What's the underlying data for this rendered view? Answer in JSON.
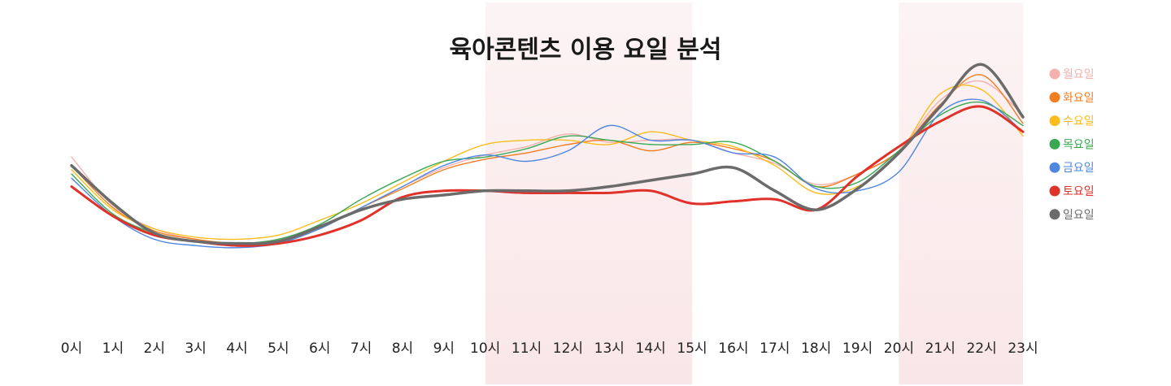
{
  "chart_data": {
    "type": "line",
    "title": "육아콘텐츠 이용 요일 분석",
    "xlabel": "",
    "ylabel": "",
    "grid": false,
    "legend": "right",
    "categories": [
      "0시",
      "1시",
      "2시",
      "3시",
      "4시",
      "5시",
      "6시",
      "7시",
      "8시",
      "9시",
      "10시",
      "11시",
      "12시",
      "13시",
      "14시",
      "15시",
      "16시",
      "17시",
      "18시",
      "19시",
      "20시",
      "21시",
      "22시",
      "23시"
    ],
    "highlight_ranges": [
      [
        10,
        15
      ],
      [
        20,
        23
      ]
    ],
    "highlight_color": "#f9e6e8",
    "ylim": [
      0,
      100
    ],
    "series": [
      {
        "name": "월요일",
        "color": "#f4b1ae",
        "width": 1.4,
        "values": [
          72,
          49,
          38,
          33,
          31,
          33,
          39,
          48,
          58,
          67,
          73,
          77,
          83,
          79,
          80,
          80,
          74,
          69,
          59,
          64,
          75,
          99,
          108,
          92
        ]
      },
      {
        "name": "화요일",
        "color": "#f47d22",
        "width": 1.4,
        "values": [
          68,
          48,
          37,
          33,
          31,
          32,
          38,
          48,
          57,
          66,
          71,
          74,
          78,
          80,
          75,
          79,
          76,
          70,
          58,
          64,
          75,
          97,
          111,
          88
        ]
      },
      {
        "name": "수요일",
        "color": "#fbbd1c",
        "width": 1.4,
        "values": [
          66,
          47,
          38,
          34,
          33,
          35,
          42,
          50,
          60,
          70,
          78,
          80,
          80,
          78,
          84,
          80,
          77,
          68,
          55,
          58,
          74,
          102,
          104,
          82
        ]
      },
      {
        "name": "목요일",
        "color": "#38a853",
        "width": 1.4,
        "values": [
          64,
          45,
          36,
          32,
          31,
          33,
          40,
          52,
          62,
          70,
          72,
          76,
          82,
          80,
          78,
          78,
          79,
          70,
          58,
          60,
          75,
          92,
          98,
          87
        ]
      },
      {
        "name": "금요일",
        "color": "#4e86e0",
        "width": 1.4,
        "values": [
          62,
          44,
          33,
          30,
          29,
          31,
          38,
          48,
          58,
          68,
          73,
          70,
          75,
          87,
          80,
          80,
          74,
          72,
          57,
          56,
          65,
          93,
          99,
          84
        ]
      },
      {
        "name": "토요일",
        "color": "#e0312a",
        "width": 3,
        "values": [
          58,
          44,
          35,
          32,
          30,
          31,
          35,
          42,
          53,
          56,
          56,
          55,
          55,
          55,
          56,
          50,
          51,
          52,
          47,
          63,
          77,
          89,
          96,
          84
        ]
      },
      {
        "name": "일요일",
        "color": "#6b6b6b",
        "width": 3.5,
        "values": [
          68,
          50,
          36,
          32,
          31,
          32,
          39,
          47,
          52,
          54,
          56,
          56,
          56,
          58,
          61,
          64,
          67,
          56,
          47,
          57,
          74,
          96,
          116,
          91
        ]
      }
    ]
  }
}
